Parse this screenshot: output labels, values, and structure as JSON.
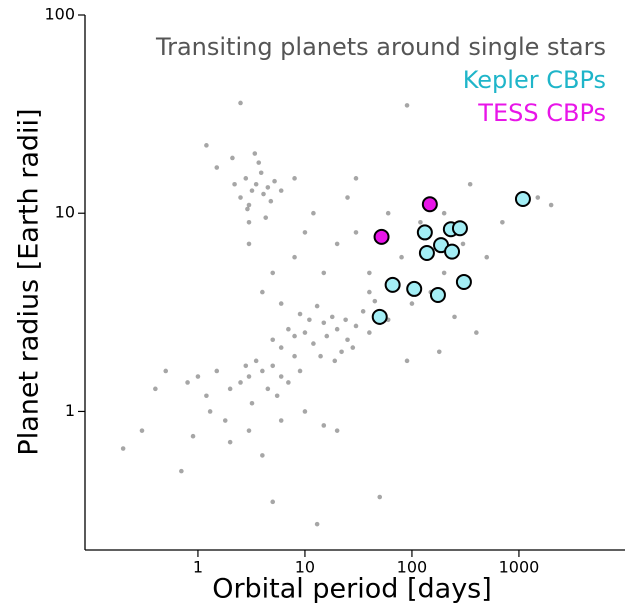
{
  "chart_data": {
    "type": "scatter",
    "xlabel": "Orbital period [days]",
    "ylabel": "Planet radius [Earth radii]",
    "xscale": "log",
    "yscale": "log",
    "xlim": [
      0.088,
      9800
    ],
    "ylim": [
      0.2,
      100
    ],
    "xticks": [
      1,
      10,
      100,
      1000
    ],
    "yticks": [
      1,
      10,
      100
    ],
    "legend": "upper right",
    "series": [
      {
        "name": "Transiting planets around single stars",
        "color": "#000000",
        "label_color": "#555555",
        "x": [
          3.2,
          3.5,
          4.1,
          2.8,
          3.9,
          4.5,
          2.5,
          3,
          5.2,
          3.7,
          2.2,
          4.8,
          1.5,
          6,
          3.4,
          2.9,
          1.2,
          8,
          4.3,
          2.1,
          10,
          12,
          15,
          8,
          20,
          25,
          18,
          30,
          6,
          9,
          14,
          22,
          35,
          40,
          11,
          7,
          16,
          28,
          50,
          13,
          5,
          19,
          45,
          60,
          24,
          3,
          4,
          2.5,
          5,
          6,
          2,
          3.5,
          7,
          1.5,
          8,
          4.5,
          1.2,
          2.8,
          9,
          1,
          5.5,
          3.2,
          0.8,
          0.5,
          0.4,
          1.8,
          3,
          6,
          10,
          15,
          2,
          0.9,
          4,
          20,
          1.3,
          0.7,
          0.3,
          0.2,
          13,
          5,
          50,
          100,
          150,
          200,
          80,
          300,
          120,
          60,
          250,
          400,
          500,
          90,
          70,
          40,
          30,
          1500,
          700,
          2000,
          200,
          180,
          350,
          5,
          8,
          4,
          3,
          10,
          6,
          15,
          20,
          12,
          25,
          30,
          2.5,
          90,
          3,
          40
        ],
        "values": [
          13,
          14,
          12.5,
          15,
          16,
          13.5,
          12,
          11,
          14.5,
          18,
          14,
          11.5,
          17,
          13,
          20,
          10.5,
          22,
          15,
          9.5,
          19,
          2.5,
          2.2,
          2.8,
          2.4,
          2.6,
          2.3,
          3.0,
          2.7,
          2.1,
          3.1,
          1.9,
          2.0,
          3.2,
          2.5,
          2.9,
          2.6,
          2.4,
          2.1,
          2.8,
          3.4,
          2.3,
          1.8,
          3.6,
          2.9,
          2.9,
          1.5,
          1.6,
          1.4,
          1.7,
          1.5,
          1.3,
          1.8,
          1.4,
          1.6,
          1.9,
          1.3,
          1.2,
          1.7,
          1.6,
          1.5,
          1.2,
          1.1,
          1.4,
          1.6,
          1.3,
          0.9,
          0.8,
          0.9,
          1.0,
          0.85,
          0.7,
          0.75,
          0.6,
          0.8,
          1.0,
          0.5,
          0.8,
          0.65,
          0.27,
          0.35,
          0.37,
          3.5,
          4,
          5,
          6,
          7,
          9,
          10,
          3,
          2.5,
          6,
          1.8,
          4.5,
          5,
          8,
          12,
          9,
          11,
          10,
          2,
          14,
          5,
          6,
          4,
          7,
          8,
          3.5,
          5,
          7,
          10,
          12,
          15,
          36,
          35,
          9,
          4
        ]
      },
      {
        "name": "Kepler CBPs",
        "color": "#a3eef5",
        "label_color": "#1fb5c9",
        "x": [
          50,
          66,
          105,
          175,
          306,
          138,
          187,
          237,
          132,
          231,
          281,
          1090
        ],
        "values": [
          3.0,
          4.35,
          4.15,
          3.87,
          4.5,
          6.3,
          6.9,
          6.4,
          8.0,
          8.3,
          8.4,
          11.8
        ]
      },
      {
        "name": "TESS CBPs",
        "color": "#e815e8",
        "label_color": "#e815e8",
        "x": [
          147,
          52
        ],
        "values": [
          11.1,
          7.6
        ]
      }
    ]
  }
}
